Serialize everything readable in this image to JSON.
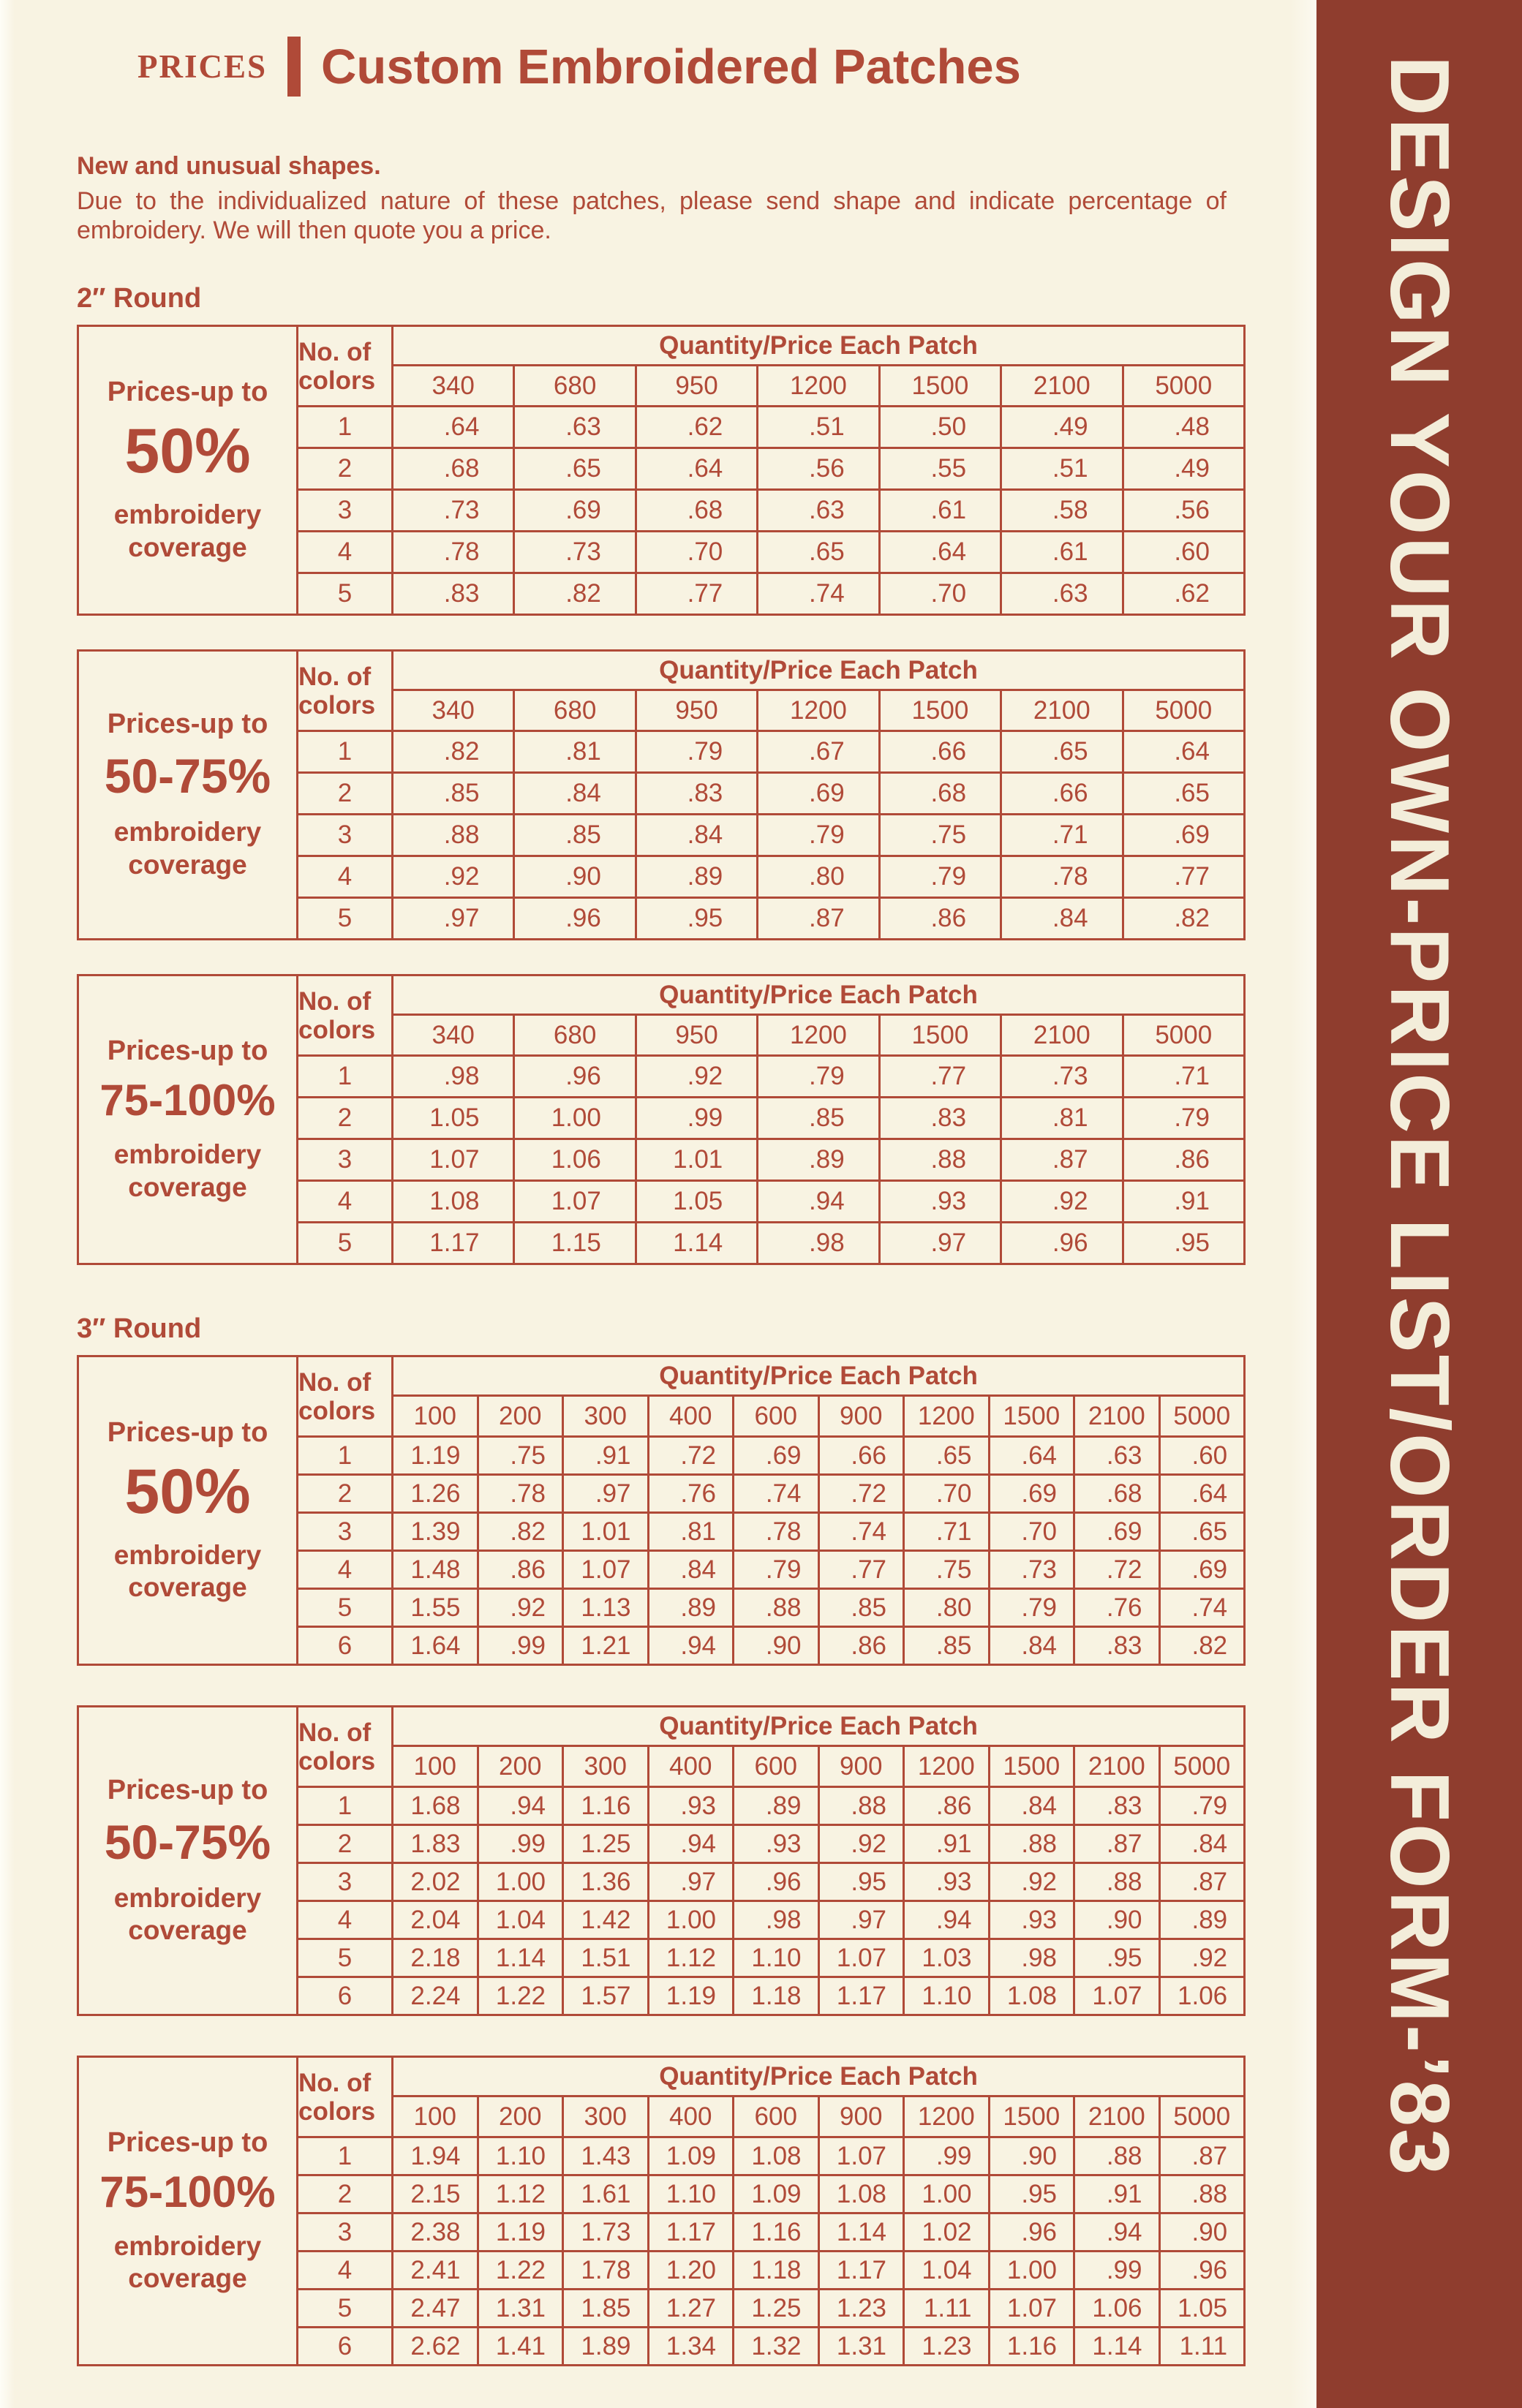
{
  "page": {
    "title_small": "PRICES",
    "title_main": "Custom Embroidered Patches",
    "intro_heading": "New and unusual shapes.",
    "intro_body": "Due to the individualized nature of these patches, please send shape and indicate percentage of embroidery. We will then quote you a price."
  },
  "sidebar": {
    "text": "DESIGN YOUR OWN-PRICE LIST/ORDER FORM-’83"
  },
  "colors": {
    "page_bg": "#f8f3e2",
    "ink": "#b04a38",
    "sidebar_bg": "#8f3d2e",
    "sidebar_text": "#f3edda"
  },
  "table_labels": {
    "coverage_prefix": "Prices-up to",
    "coverage_line1": "embroidery",
    "coverage_line2": "coverage",
    "colors_line1": "No. of",
    "colors_line2": "colors",
    "qty_header": "Quantity/Price Each Patch"
  },
  "sections": [
    {
      "label": "2″ Round",
      "quantities": [
        "340",
        "680",
        "950",
        "1200",
        "1500",
        "2100",
        "5000"
      ],
      "tables": [
        {
          "coverage_pct": "50%",
          "rows": [
            {
              "colors": "1",
              "prices": [
                ".64",
                ".63",
                ".62",
                ".51",
                ".50",
                ".49",
                ".48"
              ]
            },
            {
              "colors": "2",
              "prices": [
                ".68",
                ".65",
                ".64",
                ".56",
                ".55",
                ".51",
                ".49"
              ]
            },
            {
              "colors": "3",
              "prices": [
                ".73",
                ".69",
                ".68",
                ".63",
                ".61",
                ".58",
                ".56"
              ]
            },
            {
              "colors": "4",
              "prices": [
                ".78",
                ".73",
                ".70",
                ".65",
                ".64",
                ".61",
                ".60"
              ]
            },
            {
              "colors": "5",
              "prices": [
                ".83",
                ".82",
                ".77",
                ".74",
                ".70",
                ".63",
                ".62"
              ]
            }
          ]
        },
        {
          "coverage_pct": "50-75%",
          "rows": [
            {
              "colors": "1",
              "prices": [
                ".82",
                ".81",
                ".79",
                ".67",
                ".66",
                ".65",
                ".64"
              ]
            },
            {
              "colors": "2",
              "prices": [
                ".85",
                ".84",
                ".83",
                ".69",
                ".68",
                ".66",
                ".65"
              ]
            },
            {
              "colors": "3",
              "prices": [
                ".88",
                ".85",
                ".84",
                ".79",
                ".75",
                ".71",
                ".69"
              ]
            },
            {
              "colors": "4",
              "prices": [
                ".92",
                ".90",
                ".89",
                ".80",
                ".79",
                ".78",
                ".77"
              ]
            },
            {
              "colors": "5",
              "prices": [
                ".97",
                ".96",
                ".95",
                ".87",
                ".86",
                ".84",
                ".82"
              ]
            }
          ]
        },
        {
          "coverage_pct": "75-100%",
          "rows": [
            {
              "colors": "1",
              "prices": [
                ".98",
                ".96",
                ".92",
                ".79",
                ".77",
                ".73",
                ".71"
              ]
            },
            {
              "colors": "2",
              "prices": [
                "1.05",
                "1.00",
                ".99",
                ".85",
                ".83",
                ".81",
                ".79"
              ]
            },
            {
              "colors": "3",
              "prices": [
                "1.07",
                "1.06",
                "1.01",
                ".89",
                ".88",
                ".87",
                ".86"
              ]
            },
            {
              "colors": "4",
              "prices": [
                "1.08",
                "1.07",
                "1.05",
                ".94",
                ".93",
                ".92",
                ".91"
              ]
            },
            {
              "colors": "5",
              "prices": [
                "1.17",
                "1.15",
                "1.14",
                ".98",
                ".97",
                ".96",
                ".95"
              ]
            }
          ]
        }
      ]
    },
    {
      "label": "3″ Round",
      "quantities": [
        "100",
        "200",
        "300",
        "400",
        "600",
        "900",
        "1200",
        "1500",
        "2100",
        "5000"
      ],
      "tables": [
        {
          "coverage_pct": "50%",
          "rows": [
            {
              "colors": "1",
              "prices": [
                "1.19",
                ".75",
                ".91",
                ".72",
                ".69",
                ".66",
                ".65",
                ".64",
                ".63",
                ".60"
              ]
            },
            {
              "colors": "2",
              "prices": [
                "1.26",
                ".78",
                ".97",
                ".76",
                ".74",
                ".72",
                ".70",
                ".69",
                ".68",
                ".64"
              ]
            },
            {
              "colors": "3",
              "prices": [
                "1.39",
                ".82",
                "1.01",
                ".81",
                ".78",
                ".74",
                ".71",
                ".70",
                ".69",
                ".65"
              ]
            },
            {
              "colors": "4",
              "prices": [
                "1.48",
                ".86",
                "1.07",
                ".84",
                ".79",
                ".77",
                ".75",
                ".73",
                ".72",
                ".69"
              ]
            },
            {
              "colors": "5",
              "prices": [
                "1.55",
                ".92",
                "1.13",
                ".89",
                ".88",
                ".85",
                ".80",
                ".79",
                ".76",
                ".74"
              ]
            },
            {
              "colors": "6",
              "prices": [
                "1.64",
                ".99",
                "1.21",
                ".94",
                ".90",
                ".86",
                ".85",
                ".84",
                ".83",
                ".82"
              ]
            }
          ]
        },
        {
          "coverage_pct": "50-75%",
          "rows": [
            {
              "colors": "1",
              "prices": [
                "1.68",
                ".94",
                "1.16",
                ".93",
                ".89",
                ".88",
                ".86",
                ".84",
                ".83",
                ".79"
              ]
            },
            {
              "colors": "2",
              "prices": [
                "1.83",
                ".99",
                "1.25",
                ".94",
                ".93",
                ".92",
                ".91",
                ".88",
                ".87",
                ".84"
              ]
            },
            {
              "colors": "3",
              "prices": [
                "2.02",
                "1.00",
                "1.36",
                ".97",
                ".96",
                ".95",
                ".93",
                ".92",
                ".88",
                ".87"
              ]
            },
            {
              "colors": "4",
              "prices": [
                "2.04",
                "1.04",
                "1.42",
                "1.00",
                ".98",
                ".97",
                ".94",
                ".93",
                ".90",
                ".89"
              ]
            },
            {
              "colors": "5",
              "prices": [
                "2.18",
                "1.14",
                "1.51",
                "1.12",
                "1.10",
                "1.07",
                "1.03",
                ".98",
                ".95",
                ".92"
              ]
            },
            {
              "colors": "6",
              "prices": [
                "2.24",
                "1.22",
                "1.57",
                "1.19",
                "1.18",
                "1.17",
                "1.10",
                "1.08",
                "1.07",
                "1.06"
              ]
            }
          ]
        },
        {
          "coverage_pct": "75-100%",
          "rows": [
            {
              "colors": "1",
              "prices": [
                "1.94",
                "1.10",
                "1.43",
                "1.09",
                "1.08",
                "1.07",
                ".99",
                ".90",
                ".88",
                ".87"
              ]
            },
            {
              "colors": "2",
              "prices": [
                "2.15",
                "1.12",
                "1.61",
                "1.10",
                "1.09",
                "1.08",
                "1.00",
                ".95",
                ".91",
                ".88"
              ]
            },
            {
              "colors": "3",
              "prices": [
                "2.38",
                "1.19",
                "1.73",
                "1.17",
                "1.16",
                "1.14",
                "1.02",
                ".96",
                ".94",
                ".90"
              ]
            },
            {
              "colors": "4",
              "prices": [
                "2.41",
                "1.22",
                "1.78",
                "1.20",
                "1.18",
                "1.17",
                "1.04",
                "1.00",
                ".99",
                ".96"
              ]
            },
            {
              "colors": "5",
              "prices": [
                "2.47",
                "1.31",
                "1.85",
                "1.27",
                "1.25",
                "1.23",
                "1.11",
                "1.07",
                "1.06",
                "1.05"
              ]
            },
            {
              "colors": "6",
              "prices": [
                "2.62",
                "1.41",
                "1.89",
                "1.34",
                "1.32",
                "1.31",
                "1.23",
                "1.16",
                "1.14",
                "1.11"
              ]
            }
          ]
        }
      ]
    }
  ]
}
